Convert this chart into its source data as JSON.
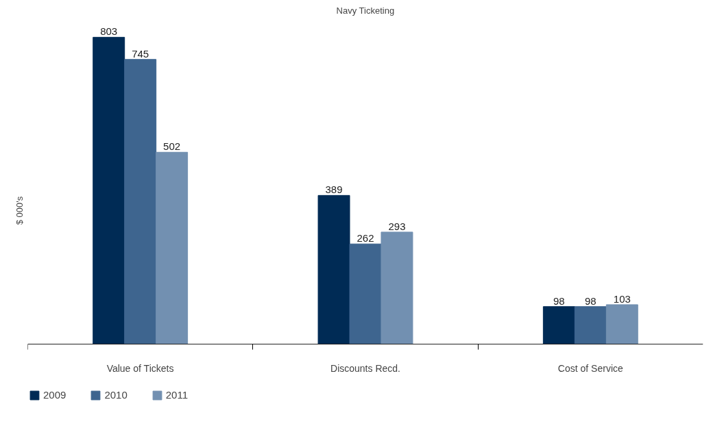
{
  "chart_data": {
    "type": "bar",
    "title": "Navy Ticketing",
    "ylabel": "$ 000's",
    "categories": [
      "Value of Tickets",
      "Discounts Recd.",
      "Cost of Service"
    ],
    "series": [
      {
        "name": "2009",
        "color": "#002b55",
        "values": [
          803,
          389,
          98
        ]
      },
      {
        "name": "2010",
        "color": "#3e658f",
        "values": [
          745,
          262,
          98
        ]
      },
      {
        "name": "2011",
        "color": "#7290b1",
        "values": [
          502,
          293,
          103
        ]
      }
    ],
    "data_labels": true,
    "grid": false,
    "legend": "bottom left"
  }
}
